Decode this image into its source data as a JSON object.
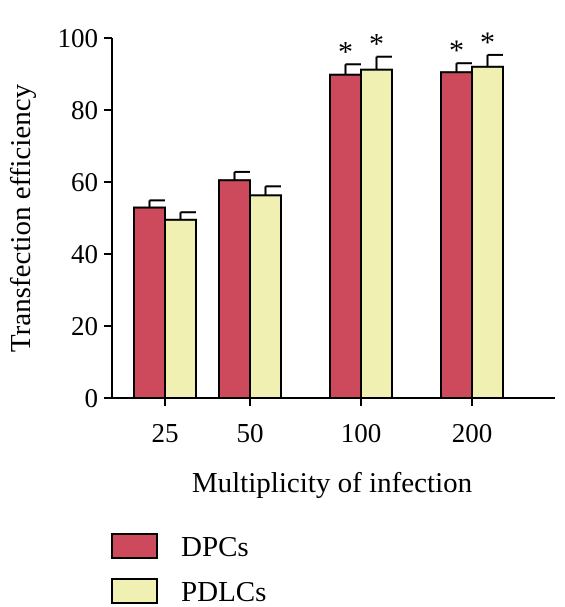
{
  "chart_data": {
    "type": "bar",
    "title": "",
    "xlabel": "Multiplicity of infection",
    "ylabel": "Transfection efficiency",
    "categories": [
      "25",
      "50",
      "100",
      "200"
    ],
    "ylim": [
      0,
      100
    ],
    "yticks": [
      "0",
      "20",
      "40",
      "60",
      "80",
      "100"
    ],
    "grid": false,
    "legend_position": "bottom-left",
    "series": [
      {
        "name": "DPCs",
        "color": "#cc4a5c",
        "values": [
          52.9,
          60.5,
          89.8,
          90.5
        ],
        "errors": [
          2.0,
          2.3,
          2.9,
          2.5
        ],
        "annotations": [
          "",
          "",
          "*",
          "*"
        ]
      },
      {
        "name": "PDLCs",
        "color": "#f0f0b2",
        "values": [
          49.5,
          56.3,
          91.2,
          92.0
        ],
        "errors": [
          2.1,
          2.5,
          3.6,
          3.3
        ],
        "annotations": [
          "",
          "",
          "*",
          "*"
        ]
      }
    ]
  }
}
